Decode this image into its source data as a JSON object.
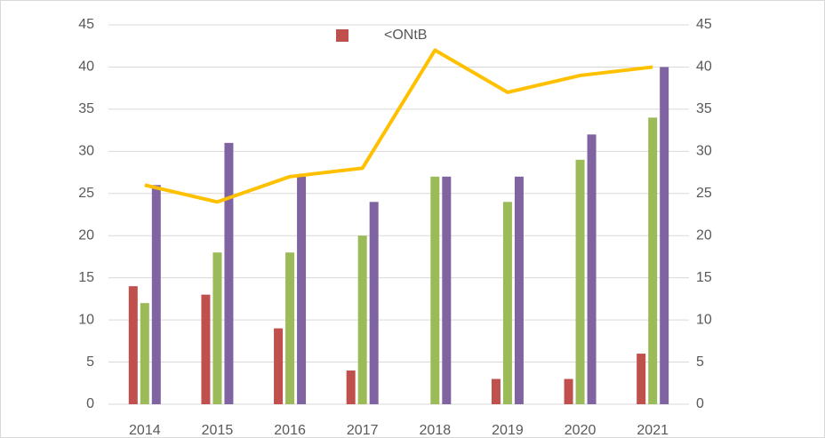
{
  "chart_data": {
    "type": "bar",
    "categories": [
      "2014",
      "2015",
      "2016",
      "2017",
      "2018",
      "2019",
      "2020",
      "2021"
    ],
    "series": [
      {
        "name": "<ONtB",
        "color": "#c0504d",
        "values": [
          14,
          13,
          9,
          4,
          null,
          3,
          3,
          6
        ]
      },
      {
        "color": "#9bbb59",
        "values": [
          12,
          18,
          18,
          20,
          27,
          24,
          29,
          34
        ]
      },
      {
        "color": "#8064a2",
        "values": [
          26,
          31,
          27,
          24,
          27,
          27,
          32,
          40
        ]
      },
      {
        "type": "line",
        "axis": "y2",
        "color": "#ffc000",
        "values": [
          26,
          24,
          27,
          28,
          42,
          37,
          39,
          40
        ]
      }
    ],
    "ylim": [
      0,
      45
    ],
    "yticks": [
      0,
      5,
      10,
      15,
      20,
      25,
      30,
      35,
      40,
      45
    ],
    "y2lim": [
      0,
      45
    ],
    "y2ticks": [
      0,
      5,
      10,
      15,
      20,
      25,
      30,
      35,
      40,
      45
    ],
    "grid": true,
    "legend": "top"
  }
}
